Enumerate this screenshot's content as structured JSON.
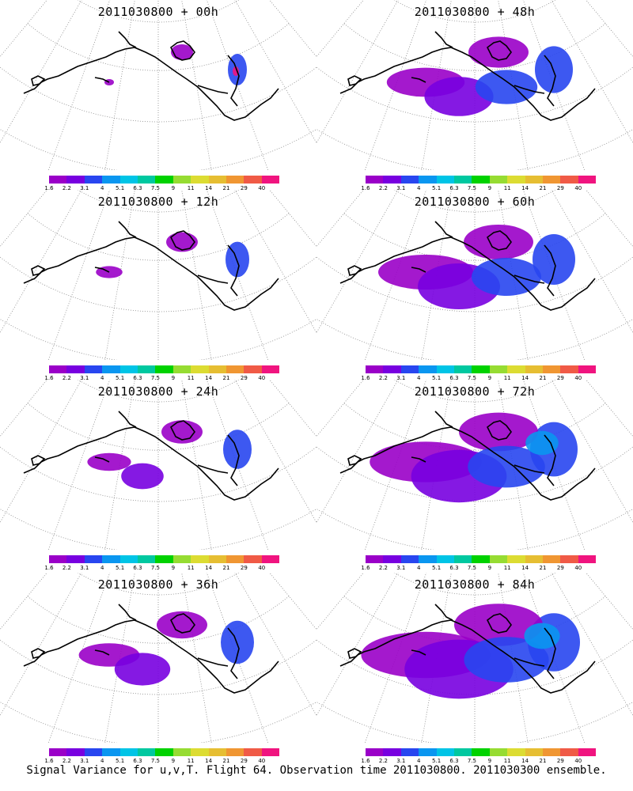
{
  "panels": [
    {
      "title": "2011030800 + 00h",
      "forecast_hour": 0
    },
    {
      "title": "2011030800 + 48h",
      "forecast_hour": 48
    },
    {
      "title": "2011030800 + 12h",
      "forecast_hour": 12
    },
    {
      "title": "2011030800 + 60h",
      "forecast_hour": 60
    },
    {
      "title": "2011030800 + 24h",
      "forecast_hour": 24
    },
    {
      "title": "2011030800 + 72h",
      "forecast_hour": 72
    },
    {
      "title": "2011030800 + 36h",
      "forecast_hour": 36
    },
    {
      "title": "2011030800 + 84h",
      "forecast_hour": 84
    }
  ],
  "colorbar": {
    "labels": [
      "1.6",
      "2.2",
      "3.1",
      "4",
      "5.1",
      "6.3",
      "7.5",
      "9",
      "11",
      "14",
      "21",
      "29",
      "40"
    ],
    "colors": [
      "#9a00c8",
      "#7800e0",
      "#2846f0",
      "#0a96f0",
      "#00c4e6",
      "#00c8a0",
      "#00d200",
      "#96dc32",
      "#dcdc32",
      "#e6be32",
      "#f09632",
      "#f05a46",
      "#f0147f"
    ]
  },
  "caption": "Signal Variance for u,v,T. Flight 64. Observation time 2011030800. 2011030300 ensemble.",
  "map_projection": "polar stereographic, North Pacific / North America sector",
  "field": "signal variance"
}
